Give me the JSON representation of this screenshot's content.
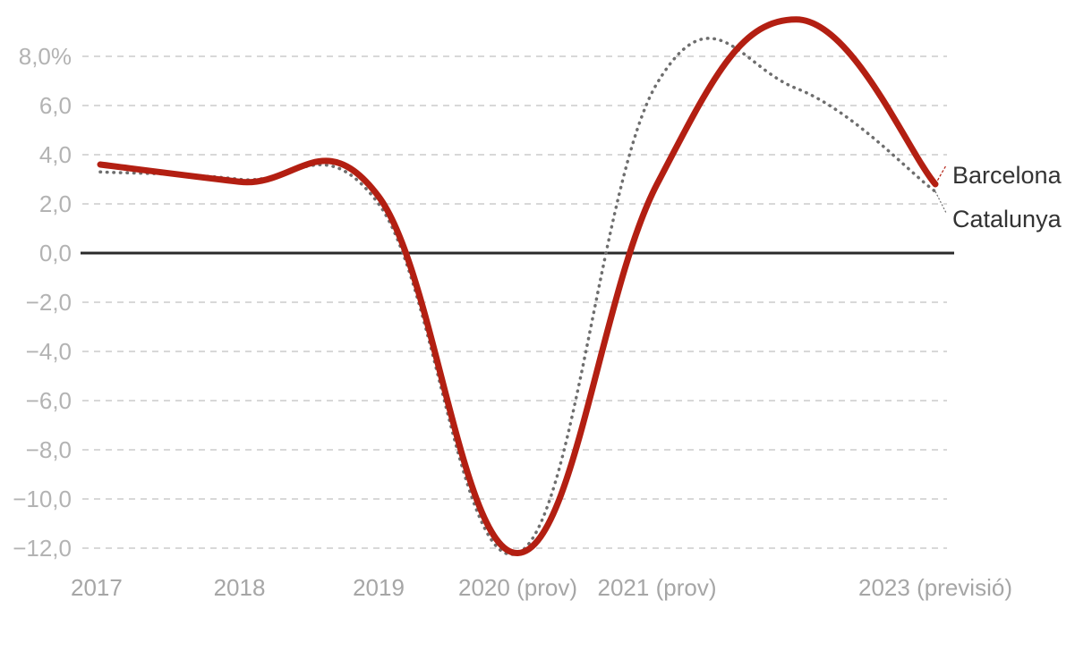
{
  "chart_data": {
    "type": "line",
    "title": "",
    "xlabel": "",
    "ylabel": "",
    "ylim": [
      -12,
      8
    ],
    "grid": true,
    "x": [
      2017,
      2018,
      2019,
      2020,
      2021,
      2022,
      2023
    ],
    "x_tick_labels": [
      {
        "x": 2017,
        "label": "2017"
      },
      {
        "x": 2018,
        "label": "2018"
      },
      {
        "x": 2019,
        "label": "2019"
      },
      {
        "x": 2020,
        "label": "2020 (prov)"
      },
      {
        "x": 2021,
        "label": "2021 (prov)"
      },
      {
        "x": 2023,
        "label": "2023 (previsió)"
      }
    ],
    "y_ticks": [
      {
        "value": 8,
        "label": "8,0%"
      },
      {
        "value": 6,
        "label": "6,0"
      },
      {
        "value": 4,
        "label": "4,0"
      },
      {
        "value": 2,
        "label": "2,0"
      },
      {
        "value": 0,
        "label": "0,0"
      },
      {
        "value": -2,
        "label": "−2,0"
      },
      {
        "value": -4,
        "label": "−4,0"
      },
      {
        "value": -6,
        "label": "−6,0"
      },
      {
        "value": -8,
        "label": "−8,0"
      },
      {
        "value": -10,
        "label": "−10,0"
      },
      {
        "value": -12,
        "label": "−12,0"
      }
    ],
    "series": [
      {
        "name": "Barcelona",
        "values": [
          3.6,
          2.9,
          2.3,
          -12.2,
          2.8,
          9.5,
          2.8
        ],
        "color": "#b31f12",
        "style": "solid"
      },
      {
        "name": "Catalunya",
        "values": [
          3.3,
          3.0,
          2.0,
          -12.2,
          6.9,
          6.7,
          2.5
        ],
        "color": "#6e6e6e",
        "style": "dotted"
      }
    ],
    "legend_position": "right-end"
  }
}
